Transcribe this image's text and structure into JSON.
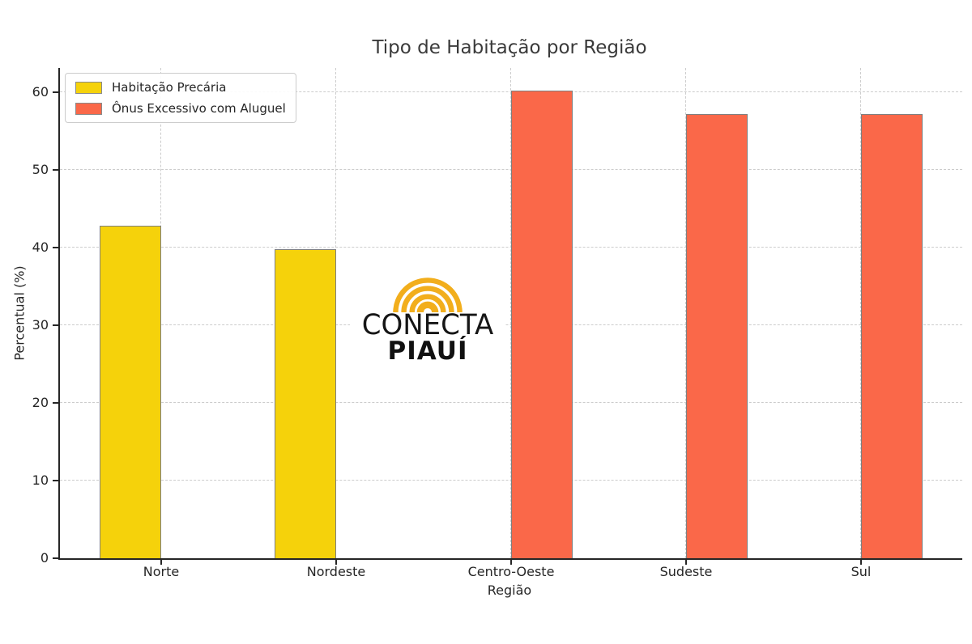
{
  "chart_data": {
    "type": "bar",
    "title": "Tipo de Habitação por Região",
    "xlabel": "Região",
    "ylabel": "Percentual (%)",
    "categories": [
      "Norte",
      "Nordeste",
      "Centro-Oeste",
      "Sudeste",
      "Sul"
    ],
    "series": [
      {
        "name": "Habitação Precária",
        "color": "#F5D20B",
        "values": [
          42.8,
          39.8,
          null,
          null,
          null
        ]
      },
      {
        "name": "Ônus Excessivo com Aluguel",
        "color": "#FA6849",
        "values": [
          null,
          null,
          60.2,
          57.2,
          57.2
        ]
      }
    ],
    "ylim": [
      0,
      63
    ],
    "yticks": [
      0,
      10,
      20,
      30,
      40,
      50,
      60
    ],
    "grid": true,
    "grid_style": "dashed",
    "legend_position": "upper-left",
    "style": {
      "bar_edge_color": "#7f7f7f",
      "grid_color": "#cccccc",
      "spine_color": "#262626",
      "text_color": "#262626",
      "title_color": "#3a3a3a",
      "background": "#ffffff"
    }
  },
  "watermark": {
    "line1": "CONECTA",
    "line2": "PIAUÍ",
    "arc_color": "#F2AE1C",
    "text_color": "#161616"
  }
}
